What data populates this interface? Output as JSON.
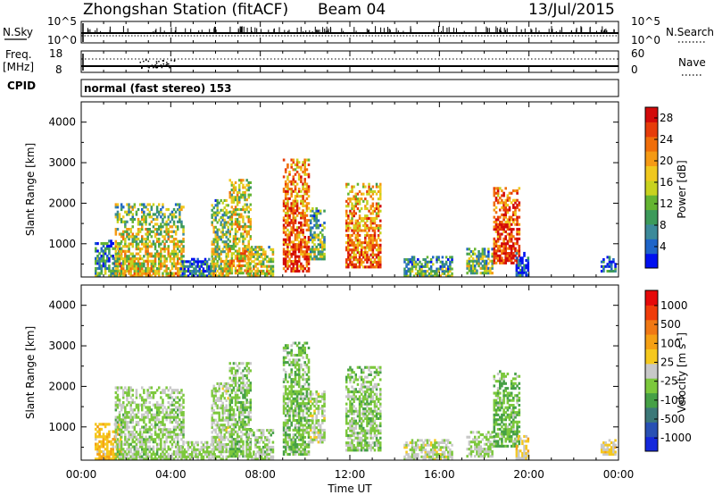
{
  "header": {
    "station": "Zhongshan Station (fitACF)",
    "beam": "Beam 04",
    "date": "13/Jul/2015"
  },
  "panels": {
    "nsky_label": "N.Sky",
    "nsky_tick_top": "10^5",
    "nsky_tick_bottom": "10^0",
    "nsearch_label": "N.Search",
    "nsearch_tick_top": "10^5",
    "nsearch_tick_bottom": "10^0",
    "freq_label_1": "Freq.",
    "freq_label_2": "[MHz]",
    "freq_tick_top": "18",
    "freq_tick_bottom": "8",
    "nave_label": "Nave",
    "nave_tick_top": "60",
    "nave_tick_bottom": "0",
    "cpid_label": "CPID",
    "cpid_text": "normal (fast stereo) 153"
  },
  "chart_data": [
    {
      "type": "heatmap",
      "name_panel": "power",
      "ylabel": "Slant Range [km]",
      "xlabel": "",
      "xlim": [
        "00:00",
        "24:00"
      ],
      "ylim": [
        180,
        4500
      ],
      "yticks": [
        1000,
        2000,
        3000,
        4000
      ],
      "colorbar": {
        "label": "Power [dB]",
        "ticks": [
          "4",
          "8",
          "12",
          "16",
          "20",
          "24",
          "28"
        ],
        "range": [
          0,
          30
        ],
        "colors": [
          "#0010f0",
          "#1e64c8",
          "#3c8a9a",
          "#3c9a5a",
          "#64b432",
          "#c8d21e",
          "#f0c81e",
          "#f59a14",
          "#f06e0a",
          "#e63c0a",
          "#d20a0a"
        ]
      },
      "echo_regions": [
        {
          "t_start": 0.6,
          "t_end": 1.8,
          "r_min": 180,
          "r_max": 1100,
          "power": 10
        },
        {
          "t_start": 1.5,
          "t_end": 4.6,
          "r_min": 180,
          "r_max": 2000,
          "power": 18
        },
        {
          "t_start": 4.4,
          "t_end": 6.0,
          "r_min": 180,
          "r_max": 650,
          "power": 8
        },
        {
          "t_start": 5.8,
          "t_end": 6.6,
          "r_min": 180,
          "r_max": 2100,
          "power": 16
        },
        {
          "t_start": 6.6,
          "t_end": 7.6,
          "r_min": 250,
          "r_max": 2600,
          "power": 20
        },
        {
          "t_start": 7.4,
          "t_end": 8.6,
          "r_min": 180,
          "r_max": 950,
          "power": 18
        },
        {
          "t_start": 9.0,
          "t_end": 10.2,
          "r_min": 300,
          "r_max": 3100,
          "power": 26
        },
        {
          "t_start": 10.2,
          "t_end": 10.9,
          "r_min": 600,
          "r_max": 1900,
          "power": 14
        },
        {
          "t_start": 11.8,
          "t_end": 13.4,
          "r_min": 400,
          "r_max": 2500,
          "power": 24
        },
        {
          "t_start": 14.4,
          "t_end": 16.6,
          "r_min": 180,
          "r_max": 700,
          "power": 12
        },
        {
          "t_start": 17.2,
          "t_end": 18.4,
          "r_min": 250,
          "r_max": 900,
          "power": 14
        },
        {
          "t_start": 18.4,
          "t_end": 19.6,
          "r_min": 500,
          "r_max": 2400,
          "power": 28
        },
        {
          "t_start": 19.4,
          "t_end": 20.0,
          "r_min": 200,
          "r_max": 800,
          "power": 6
        },
        {
          "t_start": 23.2,
          "t_end": 23.9,
          "r_min": 300,
          "r_max": 700,
          "power": 6
        }
      ]
    },
    {
      "type": "heatmap",
      "name_panel": "velocity",
      "ylabel": "Slant Range [km]",
      "xlabel": "Time UT",
      "xticks": [
        "00:00",
        "04:00",
        "08:00",
        "12:00",
        "16:00",
        "20:00",
        "00:00"
      ],
      "xlim": [
        "00:00",
        "24:00"
      ],
      "ylim": [
        180,
        4500
      ],
      "yticks": [
        1000,
        2000,
        3000,
        4000
      ],
      "colorbar": {
        "label": "Velocity [m s^-1]",
        "ticks": [
          "1000",
          "500",
          "100",
          "25",
          "-25",
          "-100",
          "-500",
          "-1000"
        ],
        "range": [
          -1250,
          1250
        ],
        "colors": [
          "#1428dc",
          "#2850b4",
          "#3c7878",
          "#46a046",
          "#7cc83c",
          "#c8c8c8",
          "#f5c81e",
          "#f5a014",
          "#f07814",
          "#f03c0a",
          "#e60a0a"
        ]
      },
      "echo_regions": [
        {
          "t_start": 0.6,
          "t_end": 1.8,
          "r_min": 180,
          "r_max": 1100,
          "velocity": 300
        },
        {
          "t_start": 1.5,
          "t_end": 4.6,
          "r_min": 180,
          "r_max": 2000,
          "velocity": -150
        },
        {
          "t_start": 4.4,
          "t_end": 6.0,
          "r_min": 180,
          "r_max": 650,
          "velocity": -120
        },
        {
          "t_start": 5.8,
          "t_end": 6.6,
          "r_min": 180,
          "r_max": 2100,
          "velocity": -100
        },
        {
          "t_start": 6.6,
          "t_end": 7.6,
          "r_min": 250,
          "r_max": 2600,
          "velocity": -200
        },
        {
          "t_start": 7.4,
          "t_end": 8.6,
          "r_min": 180,
          "r_max": 950,
          "velocity": -150
        },
        {
          "t_start": 9.0,
          "t_end": 10.2,
          "r_min": 300,
          "r_max": 3100,
          "velocity": -250
        },
        {
          "t_start": 10.2,
          "t_end": 10.9,
          "r_min": 600,
          "r_max": 1900,
          "velocity": -80
        },
        {
          "t_start": 11.8,
          "t_end": 13.4,
          "r_min": 400,
          "r_max": 2500,
          "velocity": -200
        },
        {
          "t_start": 14.4,
          "t_end": 16.6,
          "r_min": 180,
          "r_max": 700,
          "velocity": -60
        },
        {
          "t_start": 17.2,
          "t_end": 18.4,
          "r_min": 250,
          "r_max": 900,
          "velocity": -120
        },
        {
          "t_start": 18.4,
          "t_end": 19.6,
          "r_min": 500,
          "r_max": 2400,
          "velocity": -300
        },
        {
          "t_start": 19.4,
          "t_end": 20.0,
          "r_min": 200,
          "r_max": 800,
          "velocity": 150
        },
        {
          "t_start": 23.2,
          "t_end": 23.9,
          "r_min": 300,
          "r_max": 700,
          "velocity": 150
        }
      ]
    }
  ]
}
